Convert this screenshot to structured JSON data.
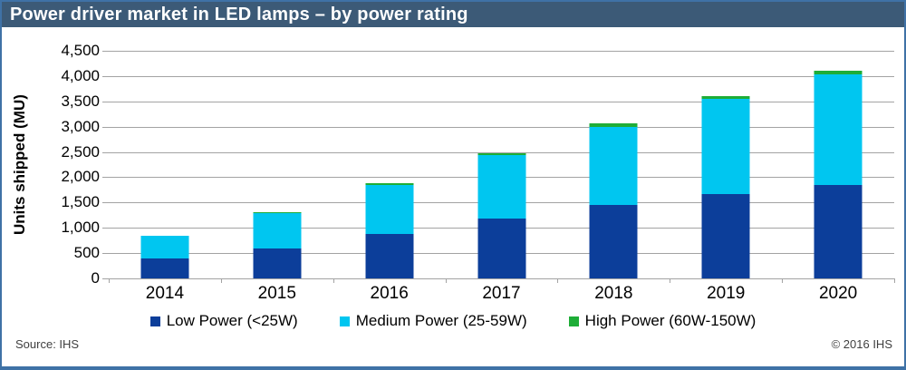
{
  "title": "Power driver market in LED lamps – by power rating",
  "footer": {
    "source_left": "Source: IHS",
    "source_right": "© 2016 IHS"
  },
  "colors": {
    "title_bar_bg": "#3c5a77",
    "panel_border": "#3f72a6",
    "gridline": "#a3a3a3",
    "low_power": "#0c3e9a",
    "medium_power": "#00c6f0",
    "high_power": "#1ead37"
  },
  "chart_data": {
    "type": "bar",
    "stacked": true,
    "title": "Power driver market in LED lamps – by power rating",
    "categories": [
      "2014",
      "2015",
      "2016",
      "2017",
      "2018",
      "2019",
      "2020"
    ],
    "series": [
      {
        "key": "low-power",
        "name": "Low Power (<25W)",
        "color": "#0c3e9a",
        "values": [
          390,
          590,
          880,
          1190,
          1460,
          1660,
          1850
        ]
      },
      {
        "key": "medium-power",
        "name": "Medium Power (25-59W)",
        "color": "#00c6f0",
        "values": [
          450,
          700,
          970,
          1240,
          1540,
          1890,
          2180
        ]
      },
      {
        "key": "high-power",
        "name": "High Power (60W-150W)",
        "color": "#1ead37",
        "values": [
          10,
          15,
          25,
          50,
          60,
          60,
          70
        ]
      }
    ],
    "totals": [
      850,
      1305,
      1875,
      2480,
      3060,
      3610,
      4100
    ],
    "xlabel": "",
    "ylabel": "Units shipped (MU)",
    "ylim": [
      0,
      4500
    ],
    "ytick_step": 500,
    "grid": true,
    "legend_position": "bottom"
  }
}
